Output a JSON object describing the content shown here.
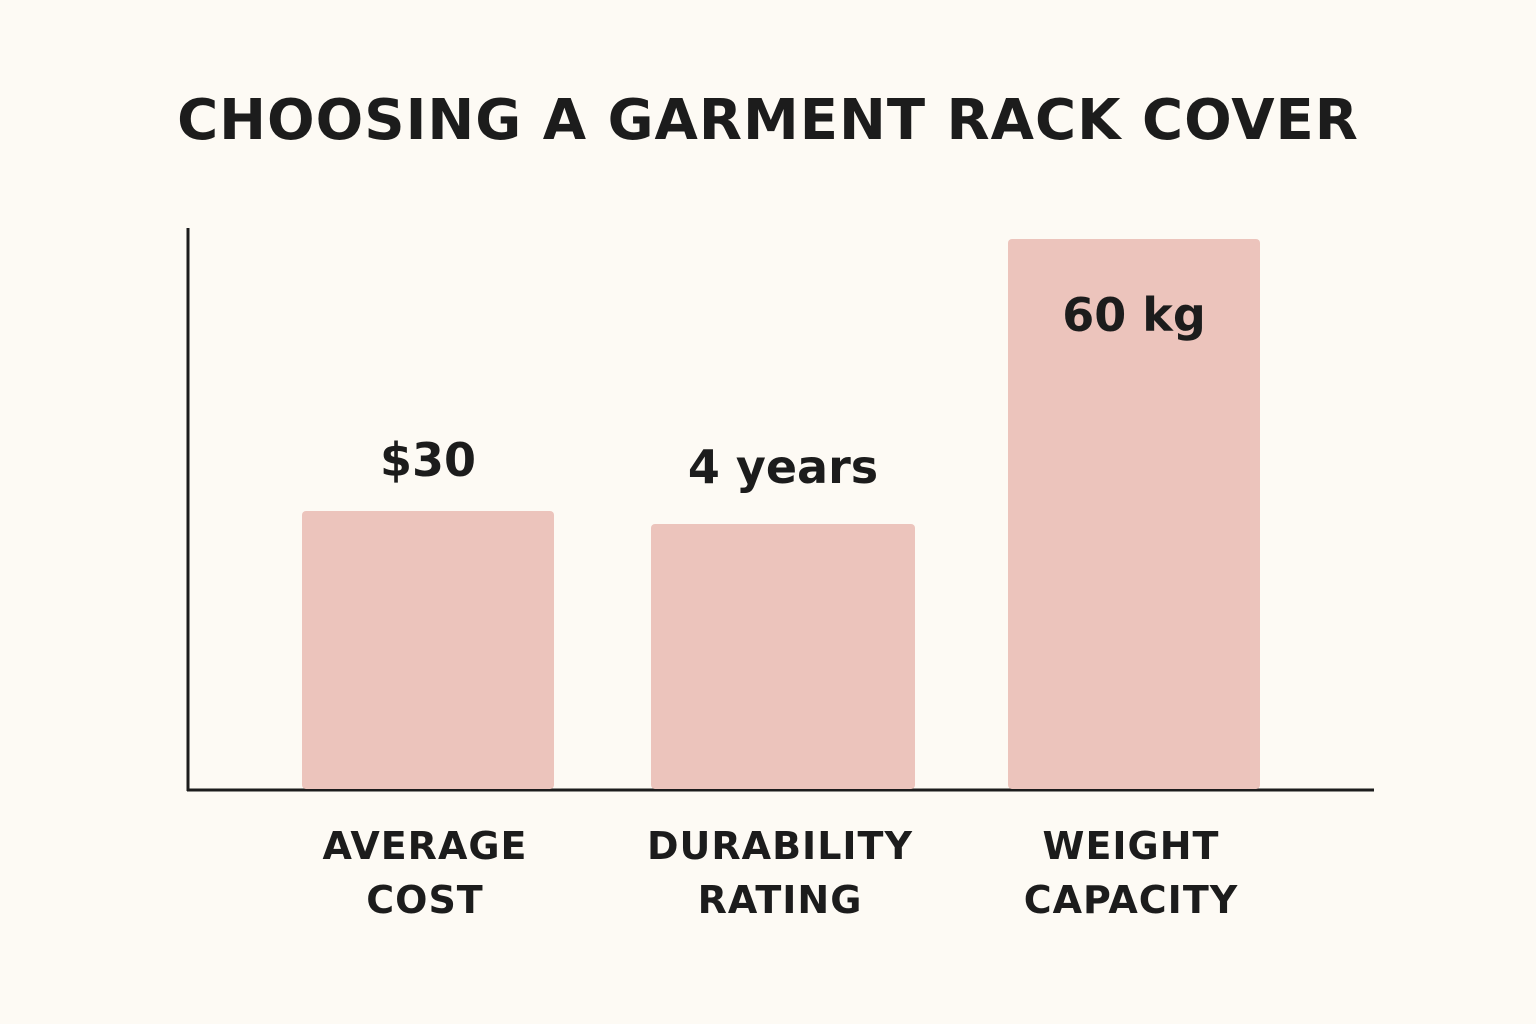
{
  "chart_data": {
    "type": "bar",
    "title": "CHOOSING A GARMENT RACK COVER",
    "categories": [
      [
        "AVERAGE",
        "COST"
      ],
      [
        "DURABILITY",
        "RATING"
      ],
      [
        "WEIGHT",
        "CAPACITY"
      ]
    ],
    "value_labels": [
      "$30",
      "4 years",
      "60 kg"
    ],
    "values": [
      30,
      4,
      60
    ],
    "xlabel": "",
    "ylabel": "",
    "grid": false,
    "legend": "none",
    "y_ticks": "none",
    "colors": {
      "bar": "#ecc4bc",
      "axis": "#1c1c1c",
      "background": "#fdfaf4"
    }
  }
}
